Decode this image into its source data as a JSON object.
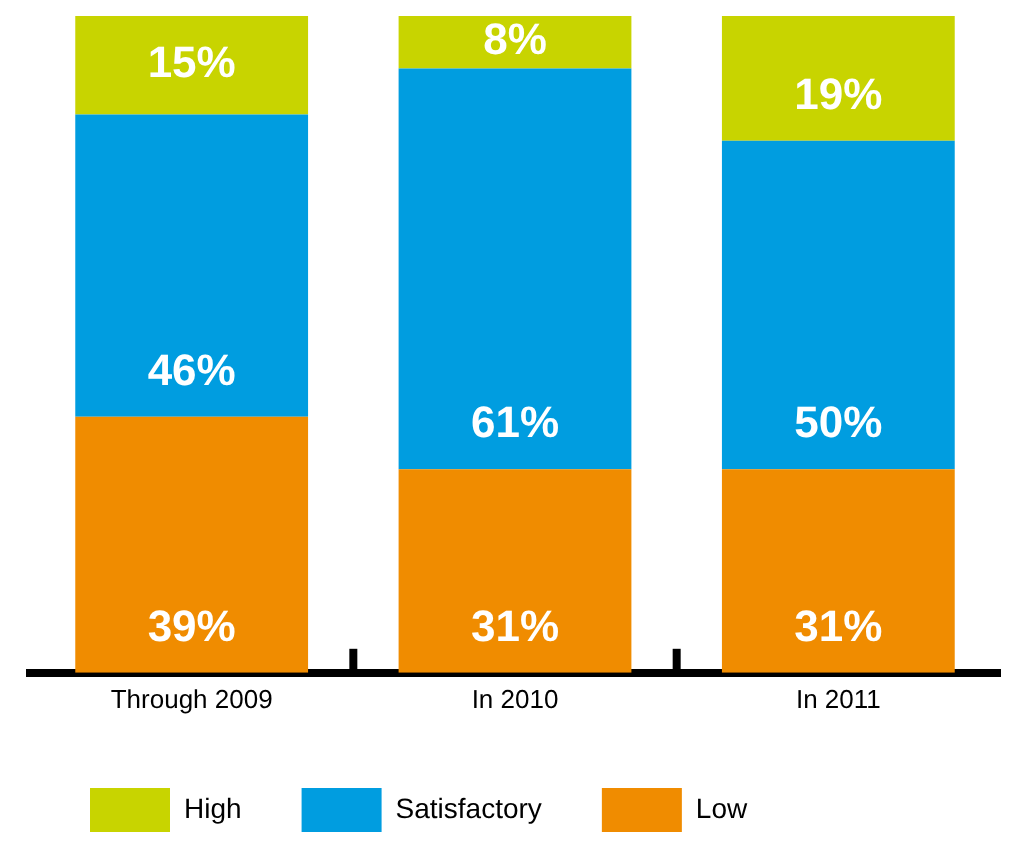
{
  "chart_data": {
    "type": "bar",
    "stacked": true,
    "legend": "bottom",
    "grid": false,
    "categories": [
      "Through 2009",
      "In 2010",
      "In 2011"
    ],
    "series": [
      {
        "name": "Low",
        "color": "#f08c00",
        "values": [
          39,
          31,
          31
        ],
        "value_labels": [
          "39%",
          "31%",
          "31%"
        ]
      },
      {
        "name": "Satisfactory",
        "color": "#009de0",
        "values": [
          46,
          61,
          50
        ],
        "value_labels": [
          "46%",
          "61%",
          "50%"
        ]
      },
      {
        "name": "High",
        "color": "#c8d400",
        "values": [
          15,
          8,
          19
        ],
        "value_labels": [
          "15%",
          "8%",
          "19%"
        ]
      }
    ]
  }
}
